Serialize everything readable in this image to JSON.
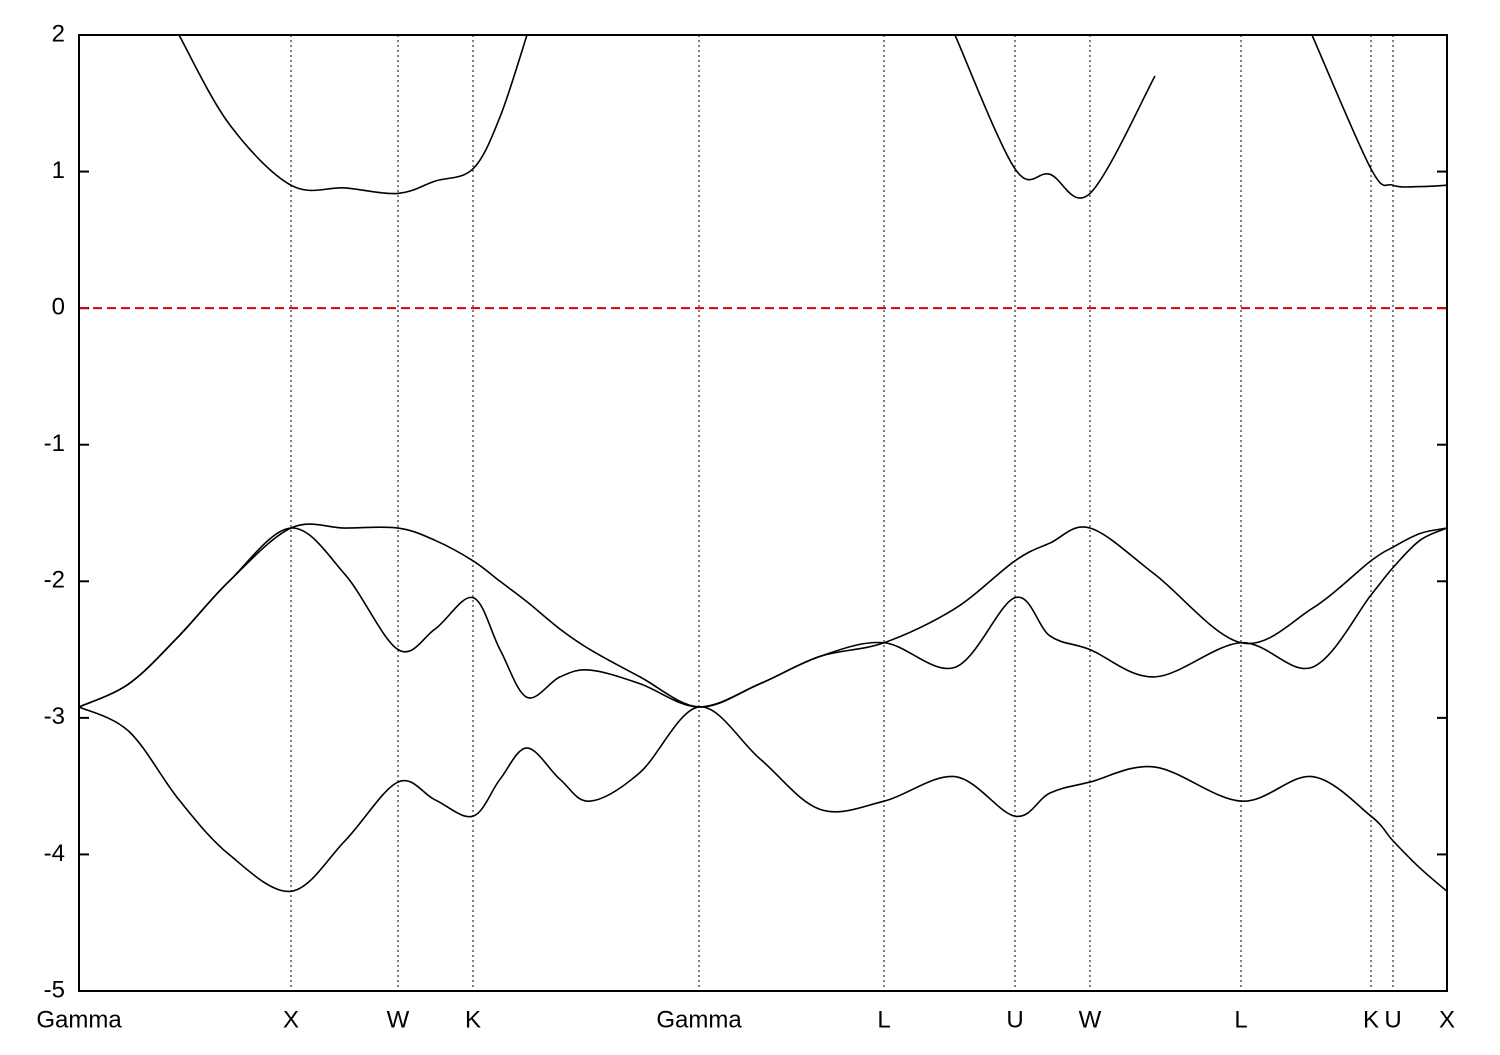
{
  "chart_data": {
    "type": "line",
    "x": [
      0,
      50,
      100,
      150,
      212,
      266,
      319,
      356,
      394,
      421,
      448,
      481,
      511,
      561,
      620,
      681,
      741,
      805,
      876,
      936,
      971,
      1011,
      1076,
      1162,
      1233,
      1292,
      1314,
      1341,
      1368
    ],
    "series": [
      {
        "color": "#000000",
        "values": [
          -2.92,
          -3.1,
          -3.6,
          -4.0,
          -4.27,
          -3.9,
          -3.47,
          -3.6,
          -3.72,
          -3.45,
          -3.22,
          -3.45,
          -3.61,
          -3.4,
          -2.92,
          -3.3,
          -3.67,
          -3.61,
          -3.43,
          -3.72,
          -3.55,
          -3.47,
          -3.36,
          -3.61,
          -3.43,
          -3.72,
          -3.9,
          -4.1,
          -4.27
        ]
      },
      {
        "color": "#000000",
        "values": [
          -2.92,
          -2.75,
          -2.4,
          -2.0,
          -1.61,
          -1.95,
          -2.5,
          -2.35,
          -2.12,
          -2.5,
          -2.85,
          -2.7,
          -2.65,
          -2.75,
          -2.92,
          -2.75,
          -2.55,
          -2.45,
          -2.63,
          -2.12,
          -2.4,
          -2.5,
          -2.7,
          -2.45,
          -2.63,
          -2.1,
          -1.9,
          -1.7,
          -1.61
        ]
      },
      {
        "color": "#000000",
        "values": [
          -2.92,
          -2.75,
          -2.4,
          -2.0,
          -1.61,
          -1.61,
          -1.61,
          -1.7,
          -1.85,
          -2.0,
          -2.15,
          -2.35,
          -2.5,
          -2.7,
          -2.92,
          -2.75,
          -2.55,
          -2.45,
          -2.2,
          -1.85,
          -1.72,
          -1.61,
          -1.95,
          -2.45,
          -2.2,
          -1.85,
          -1.75,
          -1.65,
          -1.61
        ]
      },
      {
        "color": "#000000",
        "values": [
          null,
          null,
          2.0,
          1.35,
          0.9,
          0.88,
          0.84,
          0.93,
          1.02,
          1.4,
          2.0,
          null,
          null,
          null,
          null,
          null,
          null,
          null,
          2.0,
          1.02,
          0.98,
          0.84,
          1.7,
          null,
          2.0,
          1.02,
          0.9,
          0.89,
          0.9
        ]
      }
    ],
    "fermi_level": 0,
    "fermi_color": "#dd0000",
    "xlim": [
      0,
      1368
    ],
    "xticks": [
      {
        "value": 0,
        "label": "Gamma"
      },
      {
        "value": 212,
        "label": "X"
      },
      {
        "value": 319,
        "label": "W"
      },
      {
        "value": 394,
        "label": "K"
      },
      {
        "value": 620,
        "label": "Gamma"
      },
      {
        "value": 805,
        "label": "L"
      },
      {
        "value": 936,
        "label": "U"
      },
      {
        "value": 1011,
        "label": "W"
      },
      {
        "value": 1162,
        "label": "L"
      },
      {
        "value": 1292,
        "label": "K"
      },
      {
        "value": 1314,
        "label": "U"
      },
      {
        "value": 1368,
        "label": "X"
      }
    ],
    "ylim": [
      -5,
      2
    ],
    "yticks": [
      -5,
      -4,
      -3,
      -2,
      -1,
      0,
      1,
      2
    ]
  }
}
